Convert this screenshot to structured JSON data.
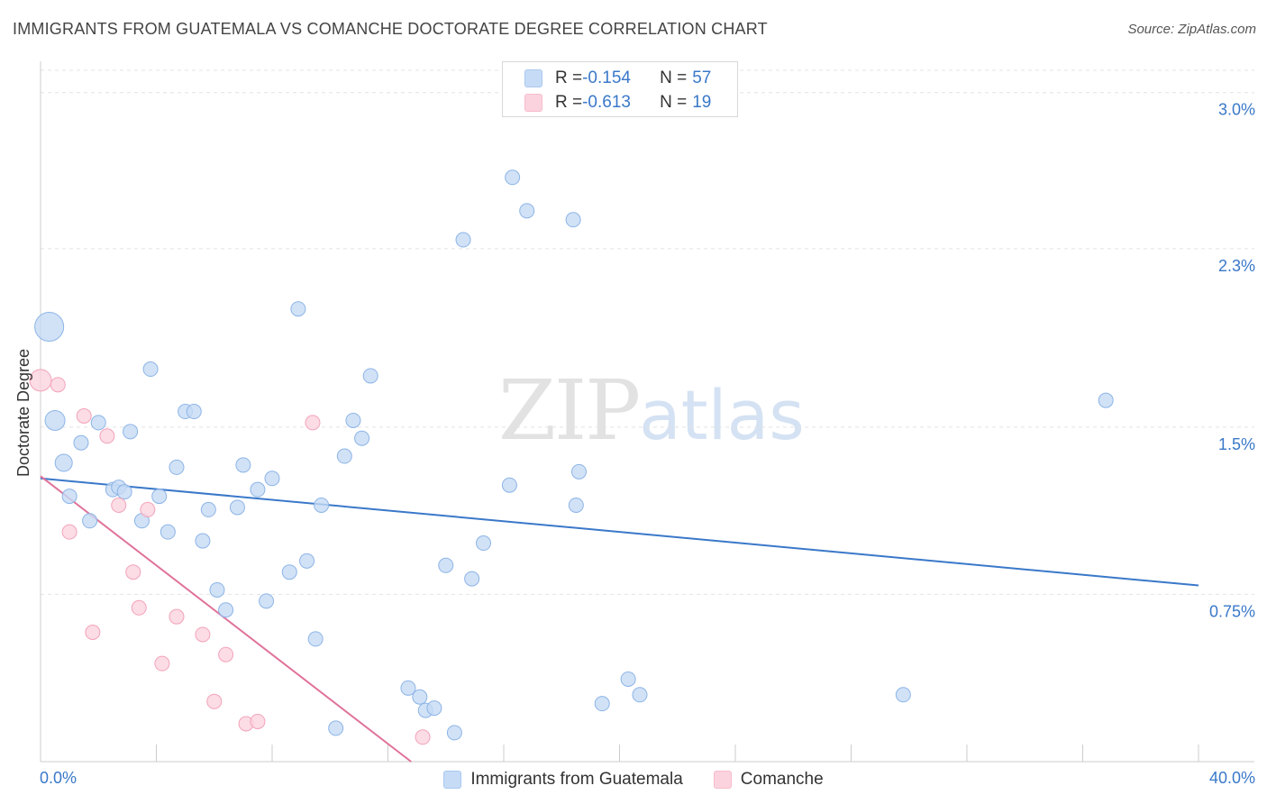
{
  "header": {
    "title": "IMMIGRANTS FROM GUATEMALA VS COMANCHE DOCTORATE DEGREE CORRELATION CHART",
    "source": "Source: ZipAtlas.com"
  },
  "watermark": {
    "zip": "ZIP",
    "atlas": "atlas"
  },
  "stats": [
    {
      "r_label": "R = ",
      "r_value": "-0.154",
      "n_label": "N = ",
      "n_value": "57",
      "color": "#a9c8f0"
    },
    {
      "r_label": "R = ",
      "r_value": "-0.613",
      "n_label": "N = ",
      "n_value": "19",
      "color": "#f7bccb"
    }
  ],
  "legend": [
    {
      "label": "Immigrants from Guatemala",
      "color": "#a9c8f0"
    },
    {
      "label": "Comanche",
      "color": "#f7bccb"
    }
  ],
  "chart_data": {
    "type": "scatter",
    "title": "IMMIGRANTS FROM GUATEMALA VS COMANCHE DOCTORATE DEGREE CORRELATION CHART",
    "xlabel": "",
    "ylabel": "Doctorate Degree",
    "xlim": [
      0,
      40
    ],
    "ylim": [
      0,
      3.1
    ],
    "x_tick_labels": [
      "0.0%",
      "40.0%"
    ],
    "y_ticks": [
      0.75,
      1.5,
      2.3,
      3.0
    ],
    "y_tick_labels": [
      "0.75%",
      "1.5%",
      "2.3%",
      "3.0%"
    ],
    "grid": true,
    "colors": {
      "blue": "#3a78c9",
      "pink": "#e0729a",
      "blue_fill": "#c6dbf5",
      "pink_fill": "#fbd3de"
    },
    "series": [
      {
        "name": "Immigrants from Guatemala",
        "points": [
          [
            0.3,
            1.95
          ],
          [
            0.5,
            1.53
          ],
          [
            0.8,
            1.34
          ],
          [
            1.4,
            1.43
          ],
          [
            1.0,
            1.19
          ],
          [
            1.7,
            1.08
          ],
          [
            2.0,
            1.52
          ],
          [
            2.5,
            1.22
          ],
          [
            3.1,
            1.48
          ],
          [
            2.7,
            1.23
          ],
          [
            2.9,
            1.21
          ],
          [
            3.5,
            1.08
          ],
          [
            3.8,
            1.76
          ],
          [
            4.1,
            1.19
          ],
          [
            4.4,
            1.03
          ],
          [
            4.7,
            1.32
          ],
          [
            5.0,
            1.57
          ],
          [
            5.3,
            1.57
          ],
          [
            5.6,
            0.99
          ],
          [
            5.8,
            1.13
          ],
          [
            6.1,
            0.77
          ],
          [
            6.4,
            0.68
          ],
          [
            6.8,
            1.14
          ],
          [
            7.0,
            1.33
          ],
          [
            7.5,
            1.22
          ],
          [
            7.8,
            0.72
          ],
          [
            8.0,
            1.27
          ],
          [
            8.6,
            0.85
          ],
          [
            8.9,
            2.03
          ],
          [
            9.2,
            0.9
          ],
          [
            9.5,
            0.55
          ],
          [
            9.7,
            1.15
          ],
          [
            10.2,
            0.15
          ],
          [
            10.5,
            1.37
          ],
          [
            10.8,
            1.53
          ],
          [
            11.1,
            1.45
          ],
          [
            11.4,
            1.73
          ],
          [
            12.7,
            0.33
          ],
          [
            13.1,
            0.29
          ],
          [
            13.3,
            0.23
          ],
          [
            13.6,
            0.24
          ],
          [
            14.3,
            0.13
          ],
          [
            14.0,
            0.88
          ],
          [
            14.6,
            2.34
          ],
          [
            14.9,
            0.82
          ],
          [
            15.3,
            0.98
          ],
          [
            16.2,
            1.24
          ],
          [
            16.3,
            2.62
          ],
          [
            16.8,
            2.47
          ],
          [
            18.4,
            2.43
          ],
          [
            18.5,
            1.15
          ],
          [
            18.6,
            1.3
          ],
          [
            19.4,
            0.26
          ],
          [
            20.3,
            0.37
          ],
          [
            20.7,
            0.3
          ],
          [
            29.8,
            0.3
          ],
          [
            36.8,
            1.62
          ]
        ]
      },
      {
        "name": "Comanche",
        "points": [
          [
            0.0,
            1.71
          ],
          [
            0.6,
            1.69
          ],
          [
            1.0,
            1.03
          ],
          [
            1.5,
            1.55
          ],
          [
            1.8,
            0.58
          ],
          [
            2.3,
            1.46
          ],
          [
            2.7,
            1.15
          ],
          [
            3.2,
            0.85
          ],
          [
            3.4,
            0.69
          ],
          [
            3.7,
            1.13
          ],
          [
            4.2,
            0.44
          ],
          [
            4.7,
            0.65
          ],
          [
            5.6,
            0.57
          ],
          [
            6.0,
            0.27
          ],
          [
            6.4,
            0.48
          ],
          [
            7.1,
            0.17
          ],
          [
            7.5,
            0.18
          ],
          [
            9.4,
            1.52
          ],
          [
            13.2,
            0.11
          ]
        ]
      }
    ],
    "trendlines": [
      {
        "series": "Immigrants from Guatemala",
        "from": [
          0,
          1.27
        ],
        "to": [
          40,
          0.79
        ]
      },
      {
        "series": "Comanche",
        "from": [
          0,
          1.28
        ],
        "to": [
          12.8,
          0.0
        ]
      }
    ]
  }
}
